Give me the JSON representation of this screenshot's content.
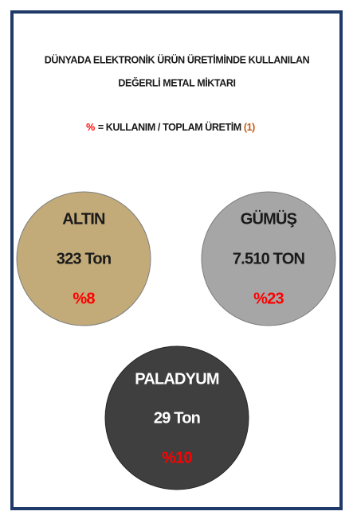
{
  "header": {
    "title_lines": [
      "DÜNYADA ELEKTRONİK ÜRÜN ÜRETİMİNDE KULLANILAN",
      "DEĞERLİ METAL MİKTARI"
    ],
    "formula": {
      "symbol": "%",
      "text": "=  KULLANIM /  TOPLAM ÜRETİM",
      "note": "(1)"
    }
  },
  "metals": [
    {
      "name": "ALTIN",
      "amount": "323 Ton",
      "percent": "%8"
    },
    {
      "name": "GÜMÜŞ",
      "amount": "7.510 TON",
      "percent": "%23"
    },
    {
      "name": "PALADYUM",
      "amount": "29 Ton",
      "percent": "%10"
    }
  ]
}
